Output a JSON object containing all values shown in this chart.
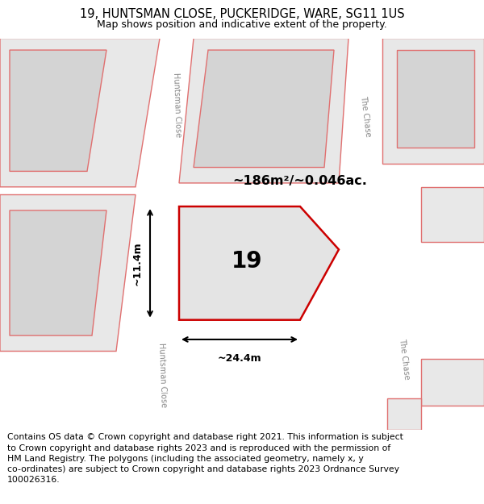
{
  "title": "19, HUNTSMAN CLOSE, PUCKERIDGE, WARE, SG11 1US",
  "subtitle": "Map shows position and indicative extent of the property.",
  "footer": "Contains OS data © Crown copyright and database right 2021. This information is subject\nto Crown copyright and database rights 2023 and is reproduced with the permission of\nHM Land Registry. The polygons (including the associated geometry, namely x, y\nco-ordinates) are subject to Crown copyright and database rights 2023 Ordnance Survey\n100026316.",
  "bg_color": "#eeeeee",
  "road_color": "#ffffff",
  "plot_fill": "#d4d4d4",
  "plot_bg": "#e8e8e8",
  "highlight_fill": "#e0e0e0",
  "highlight_stroke": "#cc0000",
  "pink_stroke": "#e07070",
  "area_text": "~186m²/~0.046ac.",
  "number_text": "19",
  "dim_width": "~24.4m",
  "dim_height": "~11.4m",
  "title_fontsize": 10.5,
  "subtitle_fontsize": 9,
  "footer_fontsize": 7.8
}
